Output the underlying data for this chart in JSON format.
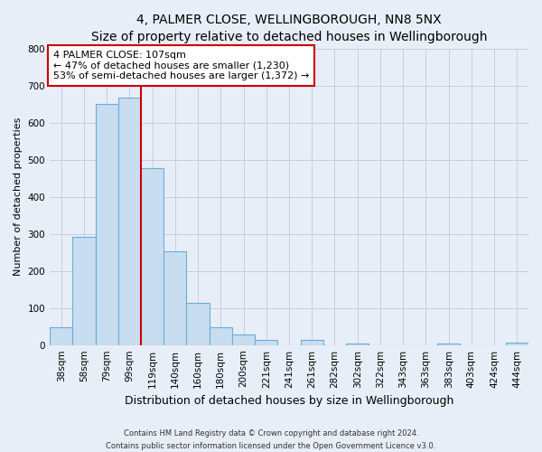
{
  "title": "4, PALMER CLOSE, WELLINGBOROUGH, NN8 5NX",
  "subtitle": "Size of property relative to detached houses in Wellingborough",
  "xlabel": "Distribution of detached houses by size in Wellingborough",
  "ylabel": "Number of detached properties",
  "bin_labels": [
    "38sqm",
    "58sqm",
    "79sqm",
    "99sqm",
    "119sqm",
    "140sqm",
    "160sqm",
    "180sqm",
    "200sqm",
    "221sqm",
    "241sqm",
    "261sqm",
    "282sqm",
    "302sqm",
    "322sqm",
    "343sqm",
    "363sqm",
    "383sqm",
    "403sqm",
    "424sqm",
    "444sqm"
  ],
  "bar_heights": [
    47,
    293,
    651,
    668,
    477,
    254,
    113,
    48,
    28,
    15,
    0,
    13,
    0,
    5,
    0,
    0,
    0,
    5,
    0,
    0,
    7
  ],
  "bar_color": "#c8ddf0",
  "bar_edge_color": "#6aaed6",
  "reference_line_x": 3.5,
  "reference_line_label": "4 PALMER CLOSE: 107sqm",
  "annotation_line1": "← 47% of detached houses are smaller (1,230)",
  "annotation_line2": "53% of semi-detached houses are larger (1,372) →",
  "annotation_box_color": "#ffffff",
  "annotation_box_edge": "#cc0000",
  "vline_color": "#cc0000",
  "ylim": [
    0,
    800
  ],
  "yticks": [
    0,
    100,
    200,
    300,
    400,
    500,
    600,
    700,
    800
  ],
  "footer1": "Contains HM Land Registry data © Crown copyright and database right 2024.",
  "footer2": "Contains public sector information licensed under the Open Government Licence v3.0.",
  "bg_color": "#e8eef7",
  "plot_bg_color": "#e8eef7",
  "grid_color": "#c5cfe0",
  "title_fontsize": 10,
  "subtitle_fontsize": 9,
  "xlabel_fontsize": 9,
  "ylabel_fontsize": 8,
  "tick_fontsize": 7.5,
  "annot_fontsize": 8,
  "footer_fontsize": 6
}
